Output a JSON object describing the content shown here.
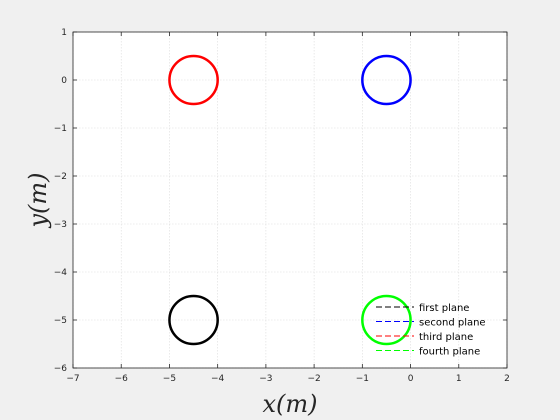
{
  "chart_data": {
    "type": "scatter",
    "xlabel": "x(m)",
    "ylabel": "y(m)",
    "xlim": [
      -7,
      2
    ],
    "ylim": [
      -6,
      1
    ],
    "xticks": [
      -7,
      -6,
      -5,
      -4,
      -3,
      -2,
      -1,
      0,
      1,
      2
    ],
    "yticks": [
      -6,
      -5,
      -4,
      -3,
      -2,
      -1,
      0,
      1
    ],
    "grid": true,
    "legend_position": "bottom-right",
    "series": [
      {
        "name": "first plane",
        "color": "#000000",
        "line_style": "dashed",
        "center": [
          -4.5,
          -5.0
        ],
        "radius": 0.5
      },
      {
        "name": "second plane",
        "color": "#0000ff",
        "line_style": "dashed",
        "center": [
          -0.5,
          0.0
        ],
        "radius": 0.5
      },
      {
        "name": "third plane",
        "color": "#ff0000",
        "line_style": "dashed",
        "center": [
          -4.5,
          0.0
        ],
        "radius": 0.5
      },
      {
        "name": "fourth plane",
        "color": "#00ff00",
        "line_style": "dashed",
        "center": [
          -0.5,
          -5.0
        ],
        "radius": 0.5
      }
    ]
  }
}
